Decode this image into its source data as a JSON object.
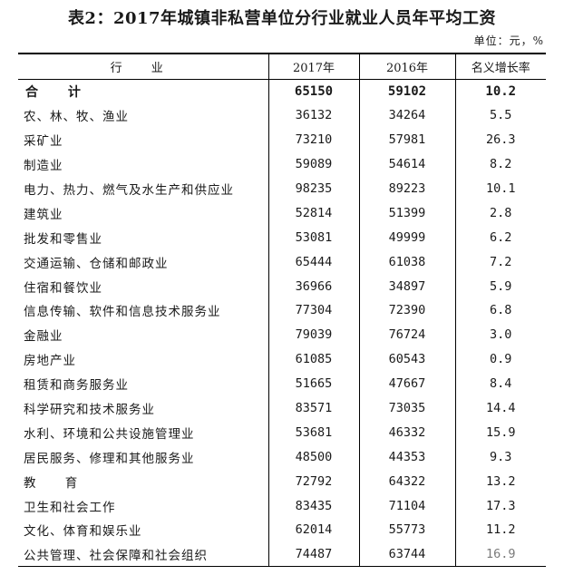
{
  "title": "表2：2017年城镇非私营单位分行业就业人员年平均工资",
  "unit": "单位：元，%",
  "headers": [
    "行 业",
    "2017年",
    "2016年",
    "名义增长率"
  ],
  "rows": [
    {
      "name": "合 计",
      "y2017": "65150",
      "y2016": "59102",
      "growth": "10.2"
    },
    {
      "name": "农、林、牧、渔业",
      "y2017": "36132",
      "y2016": "34264",
      "growth": "5.5"
    },
    {
      "name": "采矿业",
      "y2017": "73210",
      "y2016": "57981",
      "growth": "26.3"
    },
    {
      "name": "制造业",
      "y2017": "59089",
      "y2016": "54614",
      "growth": "8.2"
    },
    {
      "name": "电力、热力、燃气及水生产和供应业",
      "y2017": "98235",
      "y2016": "89223",
      "growth": "10.1"
    },
    {
      "name": "建筑业",
      "y2017": "52814",
      "y2016": "51399",
      "growth": "2.8"
    },
    {
      "name": "批发和零售业",
      "y2017": "53081",
      "y2016": "49999",
      "growth": "6.2"
    },
    {
      "name": "交通运输、仓储和邮政业",
      "y2017": "65444",
      "y2016": "61038",
      "growth": "7.2"
    },
    {
      "name": "住宿和餐饮业",
      "y2017": "36966",
      "y2016": "34897",
      "growth": "5.9"
    },
    {
      "name": "信息传输、软件和信息技术服务业",
      "y2017": "77304",
      "y2016": "72390",
      "growth": "6.8"
    },
    {
      "name": "金融业",
      "y2017": "79039",
      "y2016": "76724",
      "growth": "3.0"
    },
    {
      "name": "房地产业",
      "y2017": "61085",
      "y2016": "60543",
      "growth": "0.9"
    },
    {
      "name": "租赁和商务服务业",
      "y2017": "51665",
      "y2016": "47667",
      "growth": "8.4"
    },
    {
      "name": "科学研究和技术服务业",
      "y2017": "83571",
      "y2016": "73035",
      "growth": "14.4"
    },
    {
      "name": "水利、环境和公共设施管理业",
      "y2017": "53681",
      "y2016": "46332",
      "growth": "15.9"
    },
    {
      "name": "居民服务、修理和其他服务业",
      "y2017": "48500",
      "y2016": "44353",
      "growth": "9.3"
    },
    {
      "name": "教 育",
      "y2017": "72792",
      "y2016": "64322",
      "growth": "13.2"
    },
    {
      "name": "卫生和社会工作",
      "y2017": "83435",
      "y2016": "71104",
      "growth": "17.3"
    },
    {
      "name": "文化、体育和娱乐业",
      "y2017": "62014",
      "y2016": "55773",
      "growth": "11.2"
    },
    {
      "name": "公共管理、社会保障和社会组织",
      "y2017": "74487",
      "y2016": "63744",
      "growth": "16.9"
    }
  ]
}
